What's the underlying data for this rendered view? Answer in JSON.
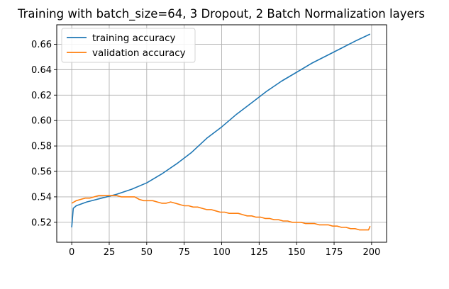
{
  "chart_data": {
    "type": "line",
    "title": "Training with batch_size=64, 3 Dropout, 2 Batch Normalization layers",
    "xlabel": "",
    "ylabel": "",
    "xlim": [
      -10,
      210
    ],
    "ylim": [
      0.5043,
      0.6753
    ],
    "grid": true,
    "legend_position": "upper-left",
    "x_ticks": [
      0,
      25,
      50,
      75,
      100,
      125,
      150,
      175,
      200
    ],
    "y_ticks": [
      0.52,
      0.54,
      0.56,
      0.58,
      0.6,
      0.62,
      0.64,
      0.66
    ],
    "x_tick_labels": [
      "0",
      "25",
      "50",
      "75",
      "100",
      "125",
      "150",
      "175",
      "200"
    ],
    "y_tick_labels": [
      "0.52",
      "0.54",
      "0.56",
      "0.58",
      "0.60",
      "0.62",
      "0.64",
      "0.66"
    ],
    "series": [
      {
        "name": "training accuracy",
        "color": "#1f77b4",
        "points": [
          [
            0,
            0.516
          ],
          [
            1,
            0.531
          ],
          [
            3,
            0.533
          ],
          [
            10,
            0.536
          ],
          [
            20,
            0.539
          ],
          [
            30,
            0.542
          ],
          [
            40,
            0.546
          ],
          [
            50,
            0.551
          ],
          [
            60,
            0.558
          ],
          [
            70,
            0.566
          ],
          [
            80,
            0.575
          ],
          [
            90,
            0.586
          ],
          [
            100,
            0.595
          ],
          [
            110,
            0.605
          ],
          [
            120,
            0.614
          ],
          [
            130,
            0.623
          ],
          [
            140,
            0.631
          ],
          [
            150,
            0.638
          ],
          [
            160,
            0.645
          ],
          [
            170,
            0.651
          ],
          [
            180,
            0.657
          ],
          [
            190,
            0.663
          ],
          [
            199,
            0.668
          ]
        ]
      },
      {
        "name": "validation accuracy",
        "color": "#ff7f0e",
        "points": [
          [
            0,
            0.535
          ],
          [
            3,
            0.537
          ],
          [
            6,
            0.538
          ],
          [
            9,
            0.539
          ],
          [
            12,
            0.539
          ],
          [
            15,
            0.54
          ],
          [
            18,
            0.541
          ],
          [
            21,
            0.541
          ],
          [
            24,
            0.541
          ],
          [
            27,
            0.541
          ],
          [
            30,
            0.541
          ],
          [
            33,
            0.54
          ],
          [
            36,
            0.54
          ],
          [
            39,
            0.54
          ],
          [
            42,
            0.54
          ],
          [
            45,
            0.538
          ],
          [
            48,
            0.537
          ],
          [
            51,
            0.537
          ],
          [
            54,
            0.537
          ],
          [
            57,
            0.536
          ],
          [
            60,
            0.535
          ],
          [
            63,
            0.535
          ],
          [
            66,
            0.536
          ],
          [
            69,
            0.535
          ],
          [
            72,
            0.534
          ],
          [
            75,
            0.533
          ],
          [
            78,
            0.533
          ],
          [
            81,
            0.532
          ],
          [
            84,
            0.532
          ],
          [
            87,
            0.531
          ],
          [
            90,
            0.53
          ],
          [
            93,
            0.53
          ],
          [
            96,
            0.529
          ],
          [
            99,
            0.528
          ],
          [
            102,
            0.528
          ],
          [
            105,
            0.527
          ],
          [
            108,
            0.527
          ],
          [
            111,
            0.527
          ],
          [
            114,
            0.526
          ],
          [
            117,
            0.525
          ],
          [
            120,
            0.525
          ],
          [
            123,
            0.524
          ],
          [
            126,
            0.524
          ],
          [
            129,
            0.523
          ],
          [
            132,
            0.523
          ],
          [
            135,
            0.522
          ],
          [
            138,
            0.522
          ],
          [
            141,
            0.521
          ],
          [
            144,
            0.521
          ],
          [
            147,
            0.52
          ],
          [
            150,
            0.52
          ],
          [
            153,
            0.52
          ],
          [
            156,
            0.519
          ],
          [
            159,
            0.519
          ],
          [
            162,
            0.519
          ],
          [
            165,
            0.518
          ],
          [
            168,
            0.518
          ],
          [
            171,
            0.518
          ],
          [
            174,
            0.517
          ],
          [
            177,
            0.517
          ],
          [
            180,
            0.516
          ],
          [
            183,
            0.516
          ],
          [
            186,
            0.515
          ],
          [
            189,
            0.515
          ],
          [
            192,
            0.514
          ],
          [
            195,
            0.514
          ],
          [
            198,
            0.514
          ],
          [
            199,
            0.517
          ]
        ]
      }
    ]
  }
}
